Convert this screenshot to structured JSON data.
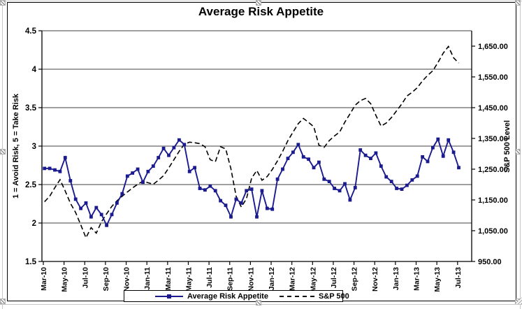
{
  "chart": {
    "title": "Average Risk Appetite",
    "legend": {
      "items": [
        {
          "label": "Average Risk Appetite",
          "style": "solid-line-square-marker",
          "color": "#1b1b8f"
        },
        {
          "label": "S&P 500",
          "style": "dashed-line",
          "color": "#000000"
        }
      ],
      "position": "bottom-center"
    }
  },
  "chart_data": {
    "type": "line",
    "title": "Average Risk Appetite",
    "grid": "horizontal",
    "legend_position": "bottom",
    "x_frequency": "semi-monthly",
    "x_tick_interval": 4,
    "x_tick_labels": [
      "Mar-10",
      "May-10",
      "Jul-10",
      "Sep-10",
      "Nov-10",
      "Jan-11",
      "Mar-11",
      "May-11",
      "Jul-11",
      "Sep-11",
      "Nov-11",
      "Jan-12",
      "Mar-12",
      "May-12",
      "Jul-12",
      "Sep-12",
      "Nov-12",
      "Jan-13",
      "Mar-13",
      "May-13",
      "Jul-13"
    ],
    "y_left": {
      "label": "1 = Avoid Risk, 5 = Take Risk",
      "range": [
        1.5,
        4.5
      ],
      "tick_step": 0.5,
      "ticks": [
        "4.5",
        "4",
        "3.5",
        "3",
        "2.5",
        "2",
        "1.5"
      ]
    },
    "y_right": {
      "label": "S&P 500 Level",
      "range": [
        950,
        1700
      ],
      "ticks": [
        "1,650.00",
        "1,550.00",
        "1,450.00",
        "1,350.00",
        "1,250.00",
        "1,150.00",
        "1,050.00",
        "950.00"
      ]
    },
    "series": [
      {
        "name": "Average Risk Appetite",
        "axis": "left",
        "color": "#1b1b8f",
        "line": "solid",
        "marker": "square",
        "values": [
          2.71,
          2.71,
          2.69,
          2.67,
          2.85,
          2.55,
          2.31,
          2.19,
          2.26,
          2.08,
          2.2,
          2.11,
          1.97,
          2.11,
          2.26,
          2.38,
          2.61,
          2.65,
          2.7,
          2.53,
          2.67,
          2.74,
          2.85,
          2.97,
          2.88,
          2.98,
          3.08,
          3.02,
          2.67,
          2.72,
          2.45,
          2.43,
          2.48,
          2.42,
          2.29,
          2.23,
          2.08,
          2.31,
          2.26,
          2.42,
          2.44,
          2.08,
          2.42,
          2.19,
          2.18,
          2.57,
          2.7,
          2.84,
          2.92,
          3.02,
          2.86,
          2.83,
          2.72,
          2.79,
          2.57,
          2.54,
          2.45,
          2.42,
          2.51,
          2.3,
          2.46,
          2.95,
          2.88,
          2.84,
          2.91,
          2.74,
          2.6,
          2.54,
          2.45,
          2.44,
          2.49,
          2.56,
          2.61,
          2.86,
          2.8,
          2.98,
          3.09,
          2.87,
          3.08,
          2.92,
          2.72
        ]
      },
      {
        "name": "S&P 500",
        "axis": "right",
        "color": "#000000",
        "line": "dashed",
        "marker": "none",
        "values": [
          1144,
          1162,
          1190,
          1216,
          1179,
          1139,
          1109,
          1069,
          1027,
          1060,
          1042,
          1079,
          1105,
          1129,
          1147,
          1162,
          1176,
          1189,
          1201,
          1211,
          1206,
          1201,
          1214,
          1229,
          1254,
          1281,
          1308,
          1331,
          1338,
          1336,
          1333,
          1323,
          1281,
          1274,
          1323,
          1316,
          1251,
          1162,
          1127,
          1154,
          1221,
          1246,
          1214,
          1226,
          1249,
          1277,
          1308,
          1343,
          1371,
          1398,
          1415,
          1402,
          1388,
          1328,
          1321,
          1343,
          1358,
          1371,
          1403,
          1430,
          1458,
          1473,
          1480,
          1463,
          1425,
          1390,
          1400,
          1418,
          1440,
          1462,
          1488,
          1500,
          1515,
          1537,
          1555,
          1570,
          1597,
          1627,
          1649,
          1612,
          1595
        ]
      }
    ]
  }
}
